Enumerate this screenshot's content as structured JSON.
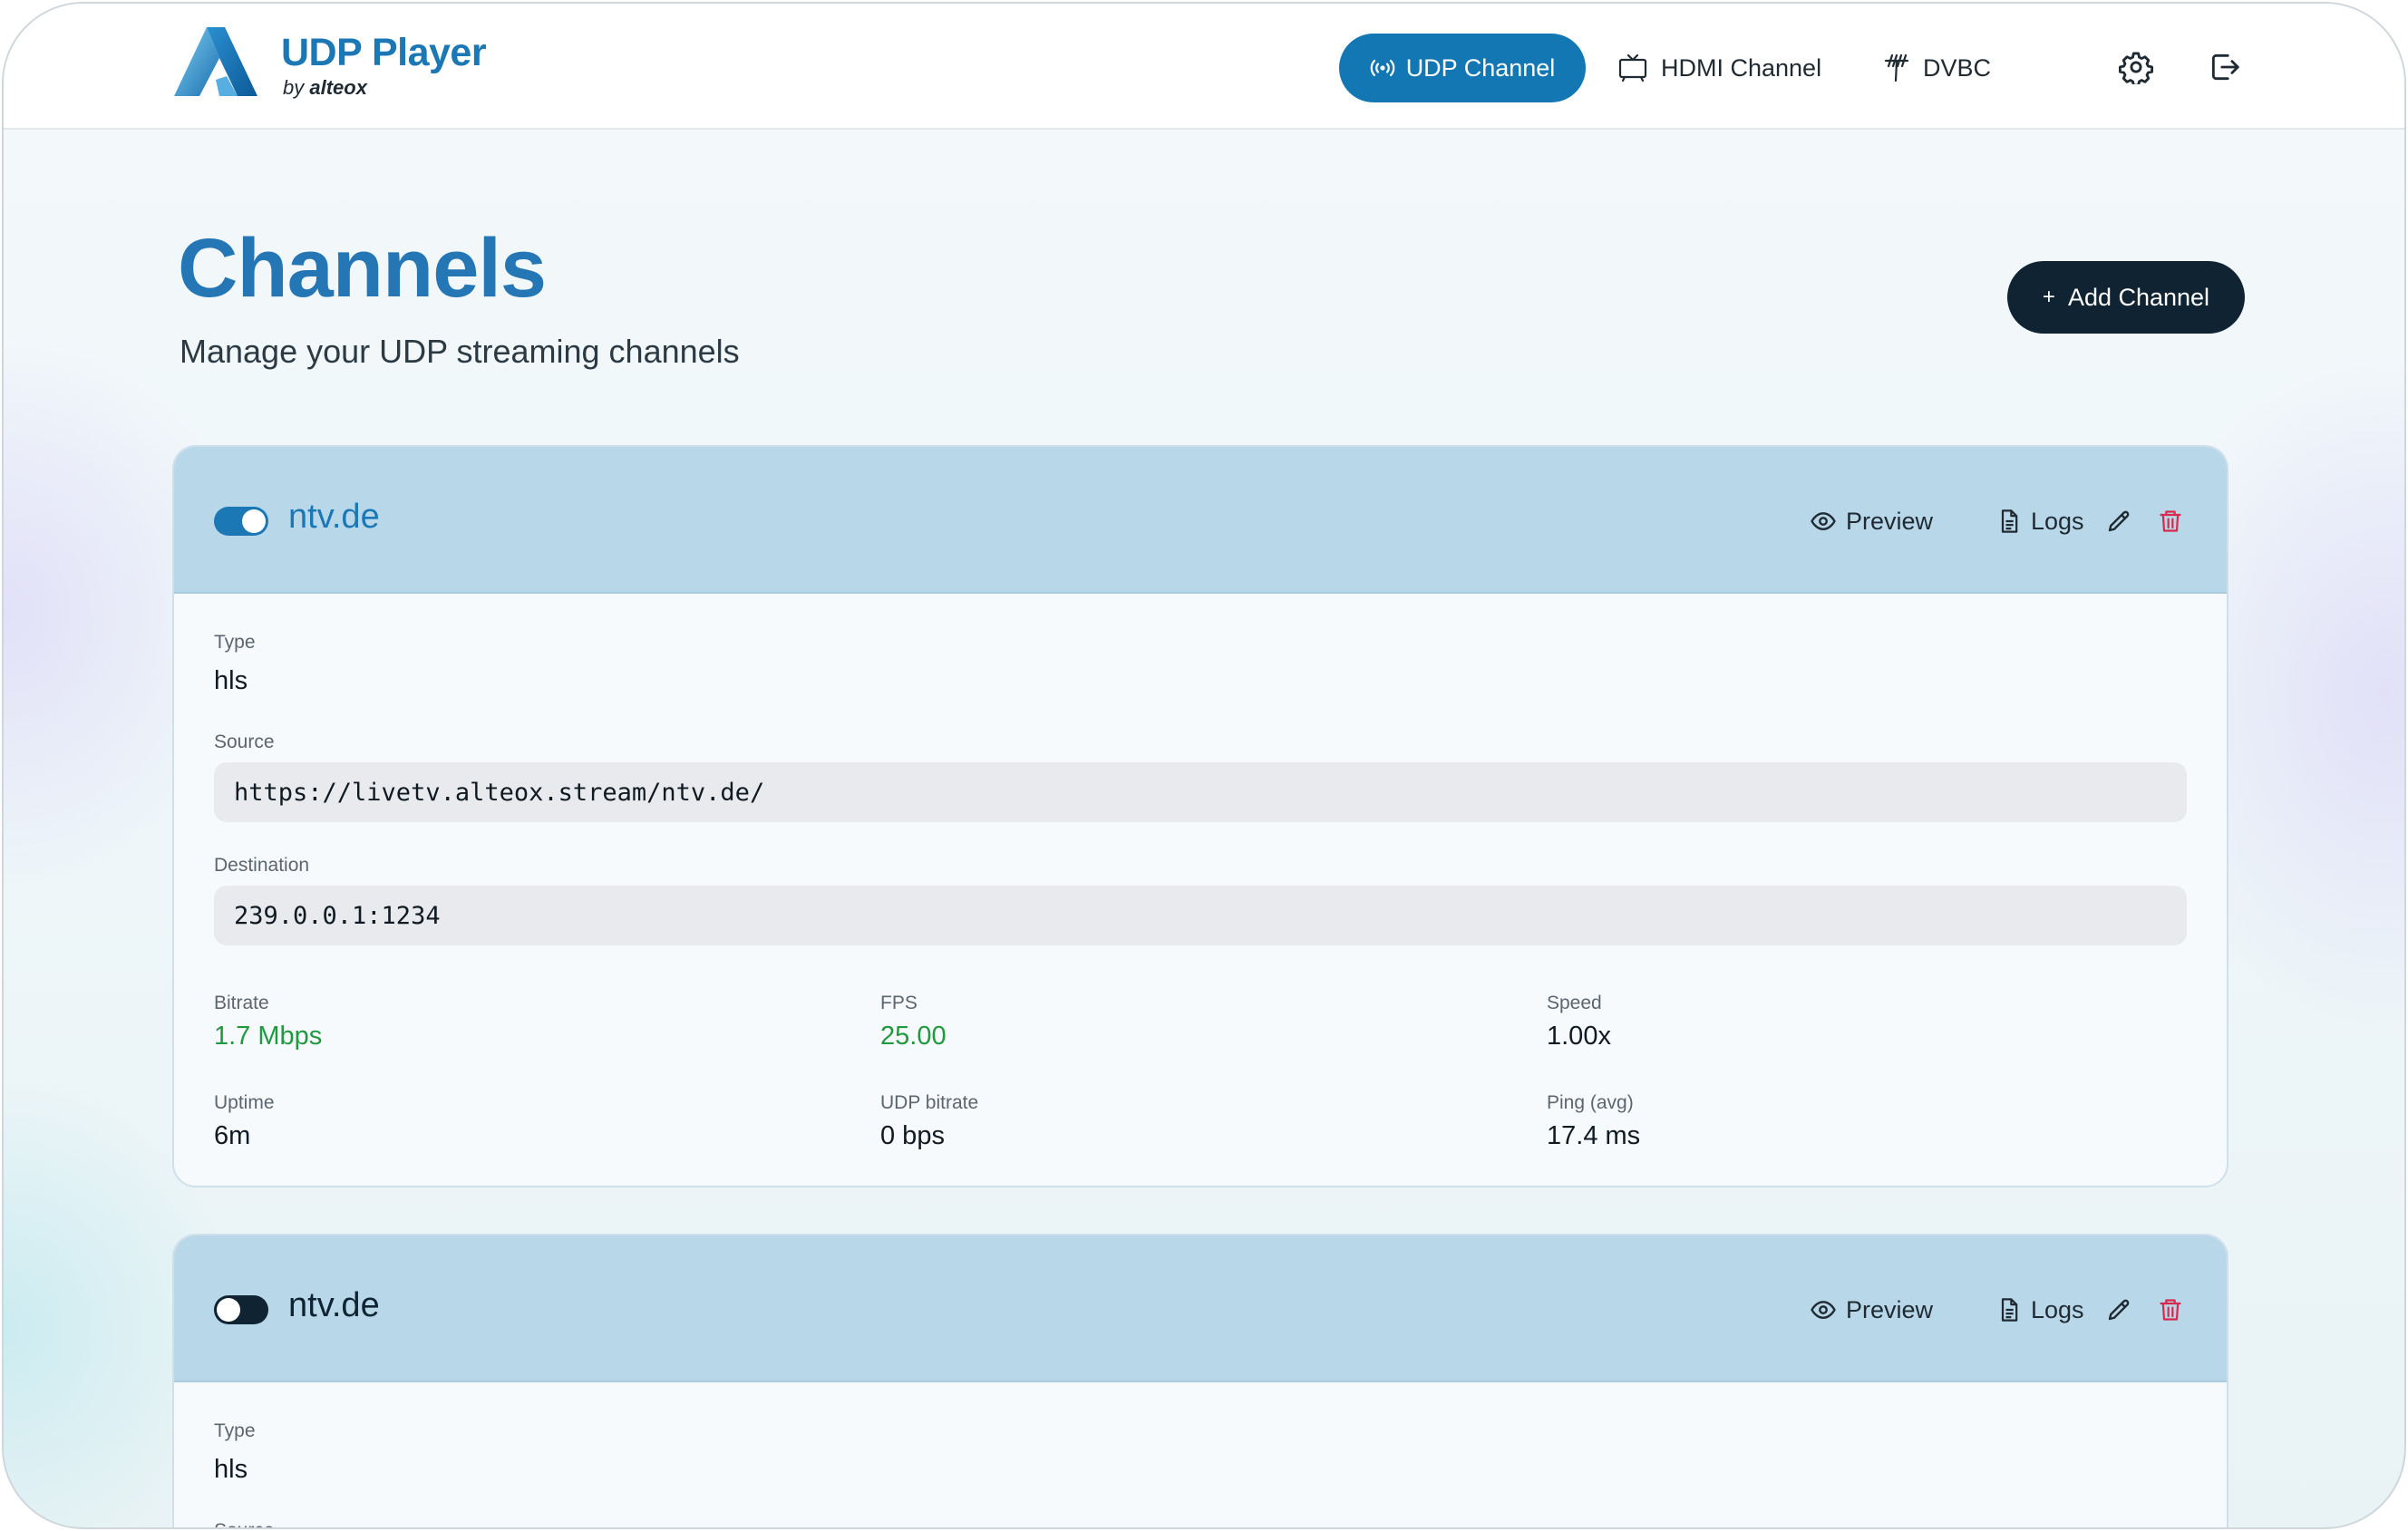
{
  "header": {
    "brand_title": "UDP Player",
    "brand_by": "by",
    "brand_company": "alteox",
    "nav": [
      {
        "label": "UDP Channel",
        "icon": "broadcast-icon",
        "active": true
      },
      {
        "label": "HDMI Channel",
        "icon": "tv-icon",
        "active": false
      },
      {
        "label": "DVBC",
        "icon": "antenna-icon",
        "active": false
      }
    ],
    "settings_icon": "gear-icon",
    "logout_icon": "logout-icon",
    "accent_color": "#1377b3"
  },
  "page": {
    "title": "Channels",
    "subtitle": "Manage your UDP streaming channels",
    "add_button_label": "Add Channel",
    "add_button_icon": "+"
  },
  "channels": [
    {
      "name": "ntv.de",
      "enabled": true,
      "actions": {
        "preview": "Preview",
        "logs": "Logs"
      },
      "type_label": "Type",
      "type": "hls",
      "source_label": "Source",
      "source": "https://livetv.alteox.stream/ntv.de/",
      "destination_label": "Destination",
      "destination": "239.0.0.1:1234",
      "stats": {
        "bitrate_label": "Bitrate",
        "bitrate": "1.7 Mbps",
        "fps_label": "FPS",
        "fps": "25.00",
        "speed_label": "Speed",
        "speed": "1.00x",
        "uptime_label": "Uptime",
        "uptime": "6m",
        "udp_bitrate_label": "UDP bitrate",
        "udp_bitrate": "0 bps",
        "ping_label": "Ping (avg)",
        "ping": "17.4 ms"
      }
    },
    {
      "name": "ntv.de",
      "enabled": false,
      "actions": {
        "preview": "Preview",
        "logs": "Logs"
      },
      "type_label": "Type",
      "type": "hls",
      "source_label": "Source"
    }
  ]
}
